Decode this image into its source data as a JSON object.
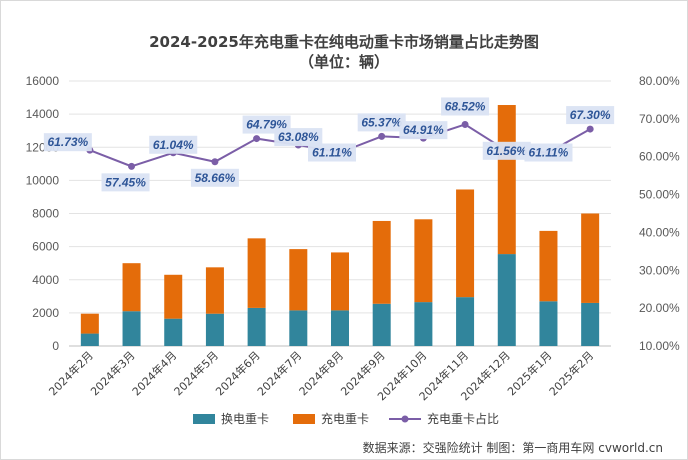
{
  "chart_data": {
    "type": "bar",
    "stacked": true,
    "title": "2024-2025年充电重卡在纯电动重卡市场销量占比走势图",
    "subtitle": "（单位：辆）",
    "categories": [
      "2024年2月",
      "2024年3月",
      "2024年4月",
      "2024年5月",
      "2024年6月",
      "2024年7月",
      "2024年8月",
      "2024年9月",
      "2024年10月",
      "2024年11月",
      "2024年12月",
      "2025年1月",
      "2025年2月"
    ],
    "series": [
      {
        "name": "换电重卡",
        "type": "bar",
        "axis": "left",
        "color": "#31859c",
        "values": [
          750,
          2100,
          1650,
          1950,
          2300,
          2150,
          2150,
          2550,
          2650,
          2950,
          5550,
          2700,
          2600
        ]
      },
      {
        "name": "充电重卡",
        "type": "bar",
        "axis": "left",
        "color": "#e46c0a",
        "values": [
          1200,
          2900,
          2650,
          2800,
          4200,
          3700,
          3500,
          5000,
          5000,
          6500,
          9000,
          4250,
          5400
        ]
      },
      {
        "name": "充电重卡占比",
        "type": "line",
        "axis": "right",
        "color": "#7b5ea7",
        "values": [
          61.73,
          57.45,
          61.04,
          58.66,
          64.79,
          63.08,
          61.11,
          65.37,
          64.91,
          68.52,
          61.56,
          61.11,
          67.3
        ],
        "labels": [
          "61.73%",
          "57.45%",
          "61.04%",
          "58.66%",
          "64.79%",
          "63.08%",
          "61.11%",
          "65.37%",
          "64.91%",
          "68.52%",
          "61.56%",
          "61.11%",
          "67.30%"
        ]
      }
    ],
    "yaxis_left": {
      "min": 0,
      "max": 16000,
      "ticks": [
        "0",
        "2000",
        "4000",
        "6000",
        "8000",
        "10000",
        "12000",
        "14000",
        "16000"
      ]
    },
    "yaxis_right": {
      "min": 10,
      "max": 80,
      "ticks": [
        "10.00%",
        "20.00%",
        "30.00%",
        "40.00%",
        "50.00%",
        "60.00%",
        "70.00%",
        "80.00%"
      ]
    },
    "grid": true,
    "legend_position": "bottom",
    "source": "数据来源：交强险统计  制图：第一商用车网 cvworld.cn"
  }
}
